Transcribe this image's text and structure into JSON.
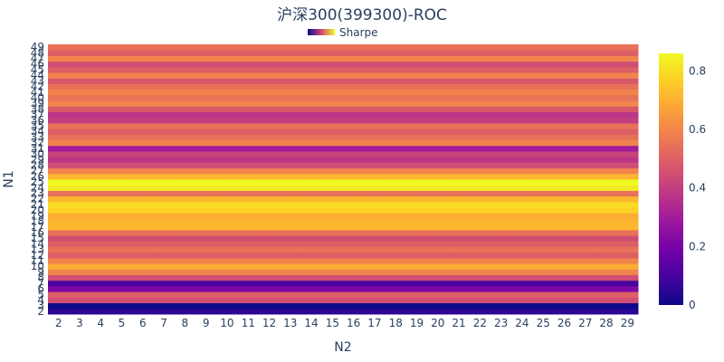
{
  "chart_data": {
    "type": "heatmap",
    "title": "沪深300(399300)-ROC",
    "xlabel": "N2",
    "ylabel": "N1",
    "legend": {
      "label": "Sharpe",
      "placement": "top-center"
    },
    "x": [
      2,
      3,
      4,
      5,
      6,
      7,
      8,
      9,
      10,
      11,
      12,
      13,
      14,
      15,
      16,
      17,
      18,
      19,
      20,
      21,
      22,
      23,
      24,
      25,
      26,
      27,
      28,
      29
    ],
    "y": [
      2,
      3,
      4,
      5,
      6,
      7,
      8,
      9,
      10,
      11,
      12,
      13,
      14,
      15,
      16,
      17,
      18,
      19,
      20,
      21,
      22,
      23,
      24,
      25,
      26,
      27,
      28,
      29,
      30,
      31,
      32,
      33,
      34,
      35,
      36,
      37,
      38,
      39,
      40,
      41,
      42,
      43,
      44,
      45,
      46,
      47,
      48,
      49
    ],
    "row_values": [
      0.05,
      0.0,
      0.45,
      0.5,
      0.22,
      0.1,
      0.45,
      0.6,
      0.7,
      0.6,
      0.5,
      0.55,
      0.5,
      0.45,
      0.55,
      0.72,
      0.72,
      0.7,
      0.78,
      0.8,
      0.72,
      0.55,
      0.83,
      0.86,
      0.72,
      0.6,
      0.45,
      0.38,
      0.42,
      0.3,
      0.6,
      0.55,
      0.5,
      0.55,
      0.4,
      0.38,
      0.48,
      0.6,
      0.55,
      0.6,
      0.55,
      0.48,
      0.6,
      0.5,
      0.45,
      0.6,
      0.5,
      0.55
    ],
    "colorbar": {
      "min": 0,
      "max": 0.86,
      "ticks": [
        "0",
        "0.2",
        "0.4",
        "0.6",
        "0.8"
      ],
      "tick_values": [
        0,
        0.2,
        0.4,
        0.6,
        0.8
      ]
    },
    "colorscale": [
      "#0d0887",
      "#46039f",
      "#7201a8",
      "#9c179e",
      "#bd3786",
      "#d8576b",
      "#ed7953",
      "#fb9f3a",
      "#fdca26",
      "#f0f921"
    ],
    "y_tick_labels_shown": [
      2,
      3,
      4,
      5,
      6,
      7,
      8,
      9,
      10,
      11,
      12,
      13,
      14,
      15,
      16,
      17,
      18,
      19,
      20,
      21,
      22,
      23,
      24,
      25,
      26,
      27,
      28,
      29,
      30,
      31,
      32,
      33,
      34,
      35,
      36,
      37,
      38,
      39,
      40,
      41,
      42,
      43,
      44,
      45,
      46,
      47,
      48,
      49
    ]
  }
}
